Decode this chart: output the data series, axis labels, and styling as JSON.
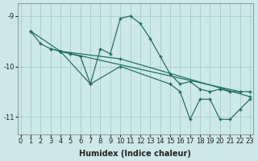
{
  "xlabel": "Humidex (Indice chaleur)",
  "ylabel": "",
  "bg_color": "#cce8e8",
  "grid_color": "#aacccc",
  "line_color": "#1e6b5e",
  "marker": "+",
  "lines": [
    {
      "x": [
        1,
        2,
        3,
        4,
        5,
        6,
        7,
        8,
        9,
        10,
        11,
        12,
        13,
        14,
        15,
        16,
        17,
        18,
        19,
        20,
        21,
        22,
        23
      ],
      "y": [
        -9.3,
        -9.55,
        -9.65,
        -9.7,
        -9.75,
        -9.8,
        -10.35,
        -9.65,
        -9.75,
        -9.05,
        -9.0,
        -9.15,
        -9.45,
        -9.8,
        -10.15,
        -10.35,
        -10.3,
        -10.45,
        -10.5,
        -10.45,
        -10.5,
        -10.5,
        -10.5
      ]
    },
    {
      "x": [
        1,
        4,
        22
      ],
      "y": [
        -9.3,
        -9.7,
        -10.5
      ]
    },
    {
      "x": [
        3,
        4,
        10,
        23
      ],
      "y": [
        -9.65,
        -9.7,
        -9.85,
        -10.6
      ]
    },
    {
      "x": [
        4,
        7,
        10,
        15,
        16,
        17,
        18,
        19,
        20,
        21,
        22,
        23
      ],
      "y": [
        -9.7,
        -10.35,
        -10.0,
        -10.35,
        -10.5,
        -11.05,
        -10.65,
        -10.65,
        -11.05,
        -11.05,
        -10.85,
        -10.65
      ]
    }
  ],
  "xlim": [
    -0.3,
    23.3
  ],
  "ylim": [
    -11.35,
    -8.75
  ],
  "yticks": [
    -11,
    -10,
    -9
  ],
  "xticks": [
    0,
    1,
    2,
    3,
    4,
    5,
    6,
    7,
    8,
    9,
    10,
    11,
    12,
    13,
    14,
    15,
    16,
    17,
    18,
    19,
    20,
    21,
    22,
    23
  ],
  "label_fontsize": 7,
  "tick_fontsize": 6
}
